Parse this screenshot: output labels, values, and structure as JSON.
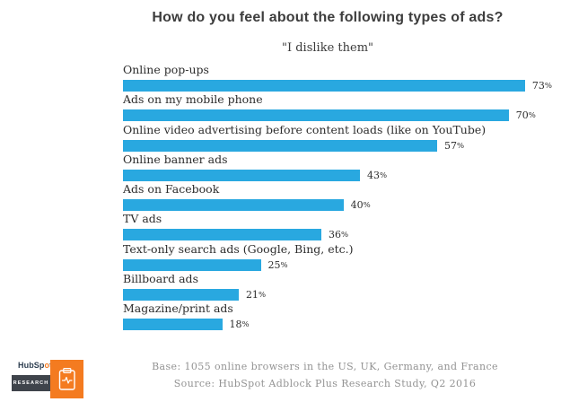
{
  "title": "How do you feel about the following types of ads?",
  "subtitle": "\"I dislike them\"",
  "chart_data": {
    "type": "bar",
    "orientation": "horizontal",
    "title": "How do you feel about the following types of ads?",
    "subtitle": "\"I dislike them\"",
    "categories": [
      "Online pop-ups",
      "Ads on my mobile phone",
      "Online video advertising before content loads (like on YouTube)",
      "Online banner ads",
      "Ads on Facebook",
      "TV ads",
      "Text-only search ads (Google, Bing, etc.)",
      "Billboard ads",
      "Magazine/print ads"
    ],
    "values": [
      73,
      70,
      57,
      43,
      40,
      36,
      25,
      21,
      18
    ],
    "value_suffix": "%",
    "xlim": [
      0,
      100
    ],
    "grid": false,
    "legend": "none",
    "bar_color": "#29a8e0"
  },
  "footer": {
    "base_note": "Base: 1055 online browsers in the US, UK, Germany, and France",
    "source_note": "Source: HubSpot Adblock Plus Research Study, Q2 2016"
  },
  "logo": {
    "brand": "HubSpot",
    "sub_brand": "RESEARCH",
    "icon": "clipboard-pulse-icon",
    "orange": "#f47b20",
    "dark": "#3f444b",
    "navy": "#2d3e50"
  }
}
